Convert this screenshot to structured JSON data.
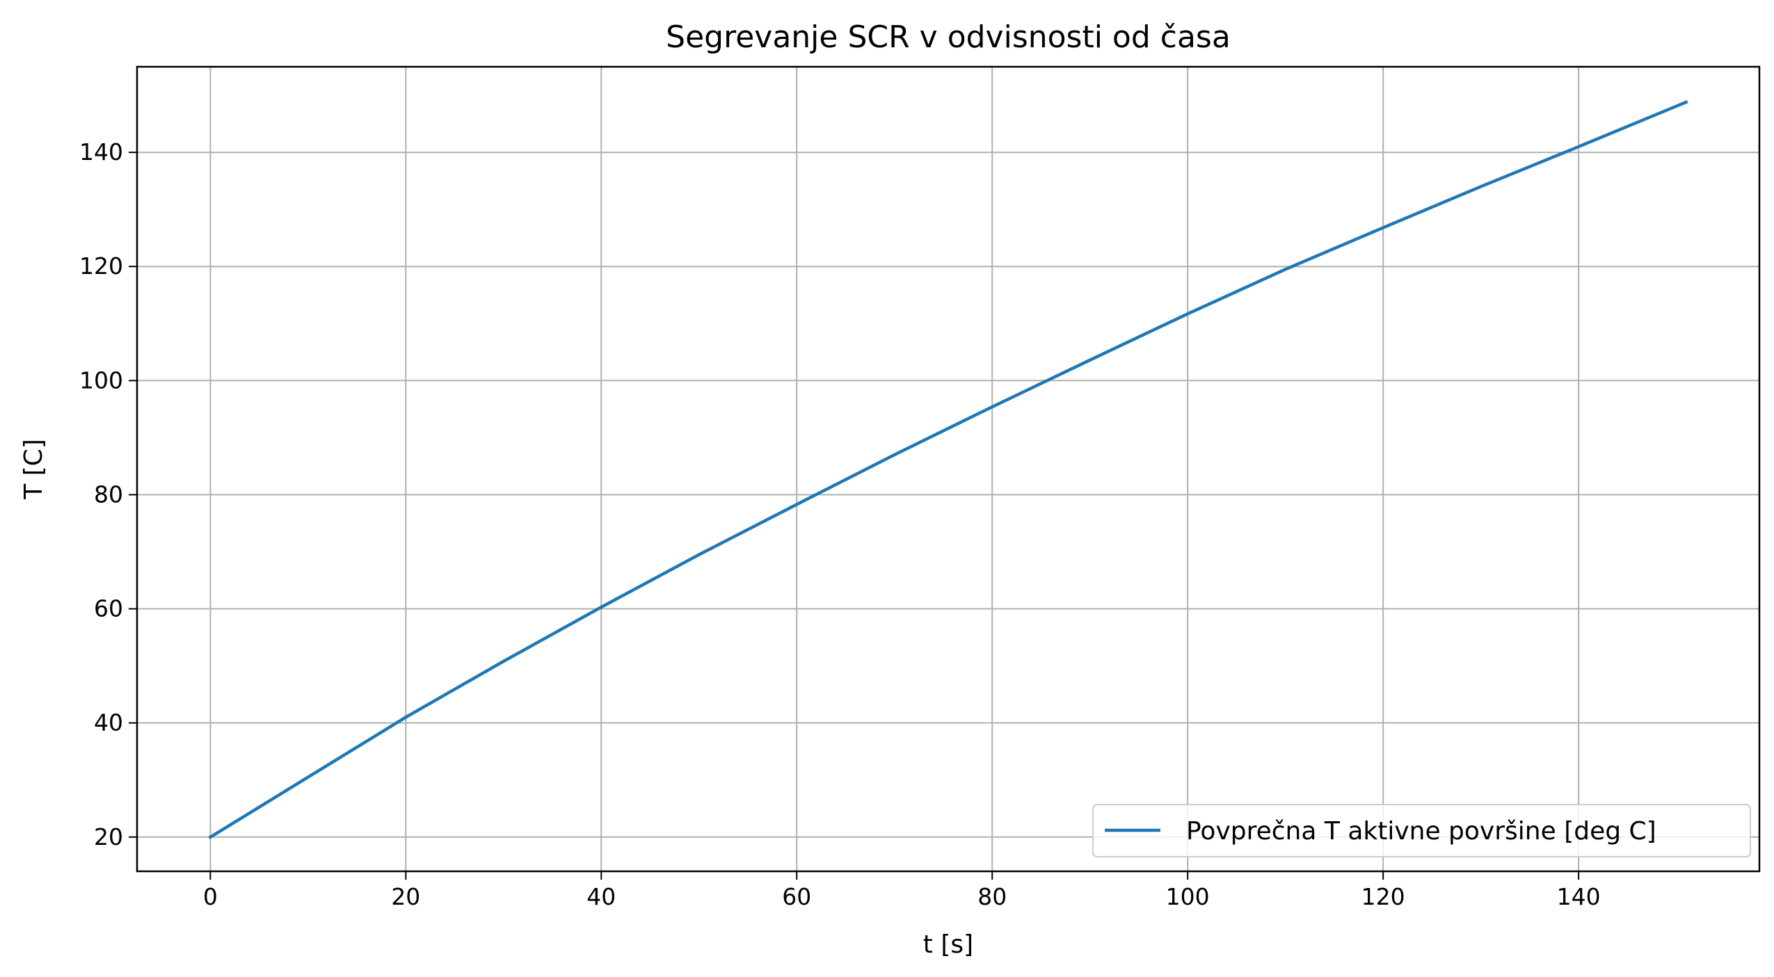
{
  "chart_data": {
    "type": "line",
    "title": "Segrevanje SCR v odvisnosti od časa",
    "xlabel": "t [s]",
    "ylabel": "T [C]",
    "xlim": [
      -7.5,
      158.5
    ],
    "ylim": [
      14,
      155
    ],
    "xticks": [
      0,
      20,
      40,
      60,
      80,
      100,
      120,
      140
    ],
    "yticks": [
      20,
      40,
      60,
      80,
      100,
      120,
      140
    ],
    "grid": true,
    "legend_position": "lower-right",
    "series": [
      {
        "name": "Povprečna T aktivne površine [deg C]",
        "color": "#1f77b4",
        "x": [
          0,
          10,
          20,
          30,
          40,
          50,
          60,
          70,
          80,
          90,
          100,
          110,
          120,
          130,
          140,
          151
        ],
        "y": [
          20,
          30.5,
          41,
          50.8,
          60.3,
          69.5,
          78.3,
          87,
          95.4,
          103.6,
          111.7,
          119.5,
          126.8,
          134,
          141,
          148.8
        ]
      }
    ]
  }
}
